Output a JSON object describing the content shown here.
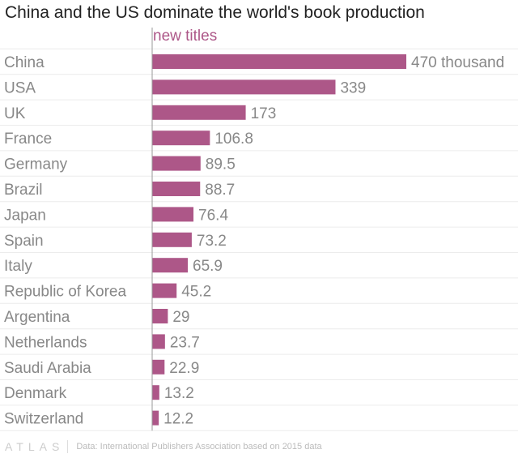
{
  "colors": {
    "bar": "#ad5788",
    "grid": "#ececec",
    "axis": "#9a9a9a",
    "label": "#888888"
  },
  "chart_data": {
    "type": "bar",
    "orientation": "horizontal",
    "title": "China and the US dominate the world's book production",
    "series_name": "new titles",
    "unit_suffix": "thousand",
    "categories": [
      "China",
      "USA",
      "UK",
      "France",
      "Germany",
      "Brazil",
      "Japan",
      "Spain",
      "Italy",
      "Republic of Korea",
      "Argentina",
      "Netherlands",
      "Saudi Arabia",
      "Denmark",
      "Switzerland"
    ],
    "values": [
      470,
      339,
      173,
      106.8,
      89.5,
      88.7,
      76.4,
      73.2,
      65.9,
      45.2,
      29,
      23.7,
      22.9,
      13.2,
      12.2
    ],
    "value_labels": [
      "470 thousand",
      "339",
      "173",
      "106.8",
      "89.5",
      "88.7",
      "76.4",
      "73.2",
      "65.9",
      "45.2",
      "29",
      "23.7",
      "22.9",
      "13.2",
      "12.2"
    ],
    "xlim": [
      0,
      470
    ]
  },
  "footer": {
    "logo": "ATLAS",
    "source": "Data: International Publishers Association based on 2015 data"
  }
}
